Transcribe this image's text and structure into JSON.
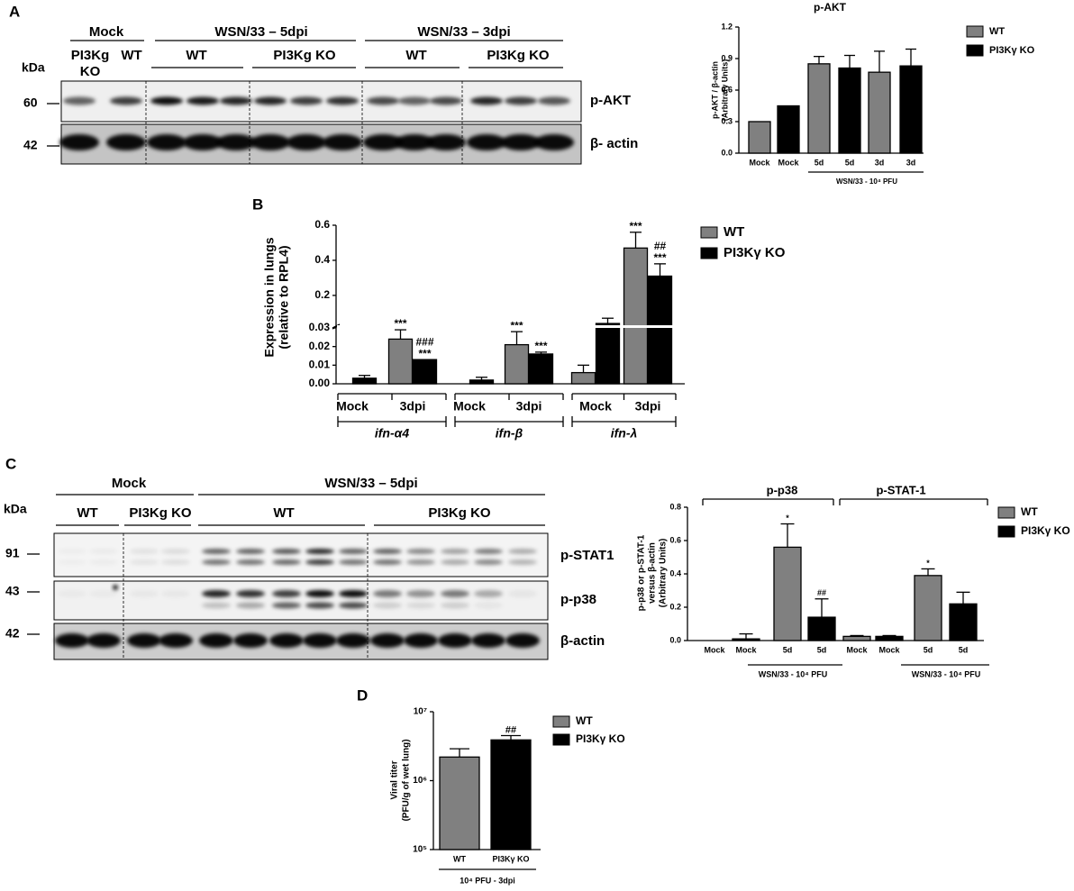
{
  "panel_labels": [
    "A",
    "B",
    "C",
    "D"
  ],
  "blot_a": {
    "unit": "kDa",
    "groups": [
      "Mock",
      "WSN/33 – 5dpi",
      "WSN/33 – 3dpi"
    ],
    "lanes": [
      "PI3Kg",
      "KO",
      "WT",
      "WT",
      "PI3Kg KO",
      "WT",
      "PI3Kg KO"
    ],
    "markers": [
      "60",
      "42"
    ],
    "proteins": [
      "p-AKT",
      "β- actin"
    ]
  },
  "blot_c": {
    "unit": "kDa",
    "groups": [
      "Mock",
      "WSN/33 – 5dpi"
    ],
    "lanes": [
      "WT",
      "PI3Kg KO",
      "WT",
      "PI3Kg KO"
    ],
    "markers": [
      "91",
      "43",
      "42"
    ],
    "proteins": [
      "p-STAT1",
      "p-p38",
      "β-actin"
    ]
  },
  "chart_data": [
    {
      "type": "bar",
      "title": "p-AKT",
      "ylabel": [
        "p-AKT / β-actin",
        "(Arbitraty Units)"
      ],
      "categories": [
        "Mock",
        "Mock",
        "5d",
        "5d",
        "3d",
        "3d"
      ],
      "sub_label": "WSN/33 - 10⁴ PFU",
      "series": [
        {
          "name": "WT",
          "color": "#808080",
          "values": [
            0.3,
            null,
            0.85,
            null,
            0.77,
            null
          ],
          "errors": [
            null,
            null,
            0.07,
            null,
            0.2,
            null
          ]
        },
        {
          "name": "PI3Kγ KO",
          "color": "#000000",
          "values": [
            null,
            0.45,
            null,
            0.81,
            null,
            0.83
          ],
          "errors": [
            null,
            null,
            null,
            0.12,
            null,
            0.16
          ]
        }
      ],
      "ylim": [
        0,
        1.2
      ],
      "yticks": [
        {
          "value": 0,
          "label": "0.0"
        },
        0.3,
        0.6,
        0.9,
        1.2
      ],
      "legend": "right"
    },
    {
      "type": "bar",
      "ylabel": [
        "Expression in lungs",
        "(relative to RPL4)"
      ],
      "categories": [
        "Mock",
        "3dpi",
        "Mock",
        "3dpi",
        "Mock",
        "3dpi"
      ],
      "groups": [
        "ifn-α4",
        "ifn-β",
        "ifn-λ"
      ],
      "series": [
        {
          "name": "WT",
          "color": "#808080",
          "values": [
            0,
            0.024,
            0,
            0.021,
            0.006,
            0.47
          ],
          "errors": [
            null,
            0.005,
            null,
            0.007,
            0.004,
            0.09
          ],
          "annotations": [
            null,
            [
              "***"
            ],
            null,
            [
              "***"
            ],
            null,
            [
              "***"
            ]
          ]
        },
        {
          "name": "PI3Kγ KO",
          "color": "#000000",
          "values": [
            0.003,
            0.013,
            0.002,
            0.016,
            0.04,
            0.31
          ],
          "errors": [
            0.0015,
            null,
            0.0015,
            0.001,
            0.03,
            0.07
          ],
          "annotations": [
            null,
            [
              "###",
              "***"
            ],
            null,
            [
              "***"
            ],
            null,
            [
              "##",
              "***"
            ]
          ]
        }
      ],
      "ylim": [
        0,
        0.6
      ],
      "ybreak": 0.03,
      "yticks": [
        {
          "value": 0,
          "label": "0.00"
        },
        0.01,
        0.02,
        0.03,
        0.2,
        0.4,
        0.6
      ],
      "legend": "right"
    },
    {
      "type": "bar",
      "ylabel": [
        "p-p38 or p-STAT-1",
        "versus β-actin",
        "(Arbitrary Units)"
      ],
      "categories": [
        "Mock",
        "Mock",
        "5d",
        "5d",
        "Mock",
        "Mock",
        "5d",
        "5d"
      ],
      "groups": [
        "p-p38",
        "p-STAT-1"
      ],
      "sub_labels": [
        "WSN/33 - 10⁴ PFU",
        "WSN/33 - 10⁴ PFU"
      ],
      "series": [
        {
          "name": "WT",
          "color": "#808080",
          "values": [
            0,
            null,
            0.56,
            null,
            0.025,
            null,
            0.39,
            null
          ],
          "errors": [
            null,
            null,
            0.14,
            null,
            0.005,
            null,
            0.04,
            null
          ],
          "annotations": [
            null,
            null,
            [
              "*"
            ],
            null,
            null,
            null,
            [
              "*"
            ],
            null
          ]
        },
        {
          "name": "PI3Kγ KO",
          "color": "#000000",
          "values": [
            null,
            0.01,
            null,
            0.14,
            null,
            0.025,
            null,
            0.22
          ],
          "errors": [
            null,
            0.03,
            null,
            0.11,
            null,
            0.005,
            null,
            0.07
          ],
          "annotations": [
            null,
            null,
            null,
            [
              "##"
            ],
            null,
            null,
            null,
            null
          ]
        }
      ],
      "ylim": [
        0,
        0.8
      ],
      "yticks": [
        {
          "value": 0,
          "label": "0.0"
        },
        0.2,
        0.4,
        0.6,
        0.8
      ],
      "legend": "right"
    },
    {
      "type": "bar",
      "ylabel": [
        "Viral titer",
        "(PFU/g of wet lung)"
      ],
      "categories": [
        "WT",
        "PI3Kγ KO"
      ],
      "sub_label": "10⁴ PFU - 3dpi",
      "series": [
        {
          "name": "WT",
          "color": "#808080",
          "values": [
            2200000,
            null
          ],
          "errors": [
            700000,
            null
          ]
        },
        {
          "name": "PI3Kγ KO",
          "color": "#000000",
          "values": [
            null,
            3900000
          ],
          "errors": [
            null,
            600000
          ],
          "annotations": [
            null,
            [
              "##"
            ]
          ]
        }
      ],
      "log_scale": true,
      "ylim": [
        100000,
        10000000
      ],
      "yticks": [
        {
          "value": 100000,
          "label": "10⁵"
        },
        {
          "value": 1000000,
          "label": "10⁶"
        },
        {
          "value": 10000000,
          "label": "10⁷"
        }
      ],
      "legend": "right"
    }
  ]
}
